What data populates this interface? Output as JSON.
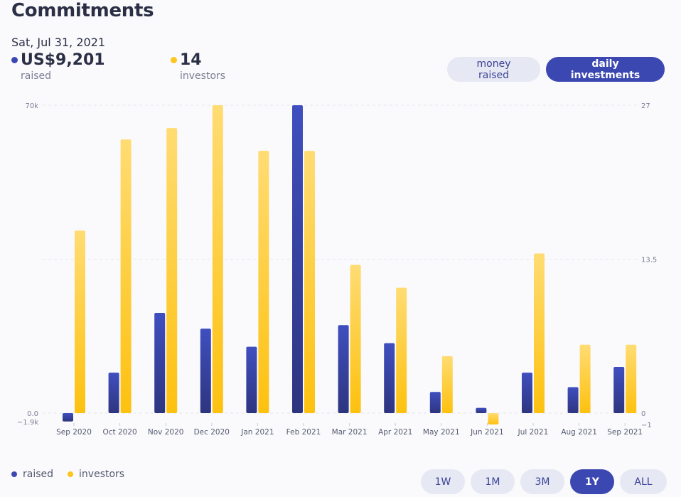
{
  "header": {
    "title": "Commitments",
    "date": "Sat, Jul 31, 2021"
  },
  "stats": {
    "raised": {
      "value": "US$9,201",
      "label": "raised"
    },
    "investors": {
      "value": "14",
      "label": "investors"
    }
  },
  "toggles": {
    "money_raised": "money raised",
    "daily_investments": "daily investments",
    "active": "daily investments"
  },
  "legend": {
    "raised": "raised",
    "investors": "investors"
  },
  "ranges": {
    "items": [
      "1W",
      "1M",
      "3M",
      "1Y",
      "ALL"
    ],
    "active": "1Y"
  },
  "colors": {
    "raised": "#3c48b1",
    "investors": "#fdc51d",
    "accent": "#3c48b1"
  },
  "chart_data": {
    "type": "bar",
    "categories": [
      "Sep 2020",
      "Oct 2020",
      "Nov 2020",
      "Dec 2020",
      "Jan 2021",
      "Feb 2021",
      "Mar 2021",
      "Apr 2021",
      "May 2021",
      "Jun 2021",
      "Jul 2021",
      "Aug 2021",
      "Sep 2021"
    ],
    "series": [
      {
        "name": "raised",
        "axis": "left",
        "values": [
          -1900,
          9200,
          22800,
          19200,
          15100,
          70000,
          20000,
          15900,
          4800,
          1200,
          9200,
          5900,
          10500
        ]
      },
      {
        "name": "investors",
        "axis": "right",
        "values": [
          16,
          24,
          25,
          27,
          23,
          23,
          13,
          11,
          5,
          -1,
          14,
          6,
          6
        ]
      }
    ],
    "y_left": {
      "ticks": [
        "70k",
        "0.0",
        "−1.9k"
      ],
      "tick_values": [
        70000,
        0,
        -1900
      ],
      "range": [
        -1900,
        70000
      ]
    },
    "y_right": {
      "ticks": [
        "27",
        "13.5",
        "0",
        "−1"
      ],
      "tick_values": [
        27,
        13.5,
        0,
        -1
      ],
      "range": [
        -1,
        27
      ]
    },
    "grid": true,
    "legend_position": "bottom-left"
  }
}
